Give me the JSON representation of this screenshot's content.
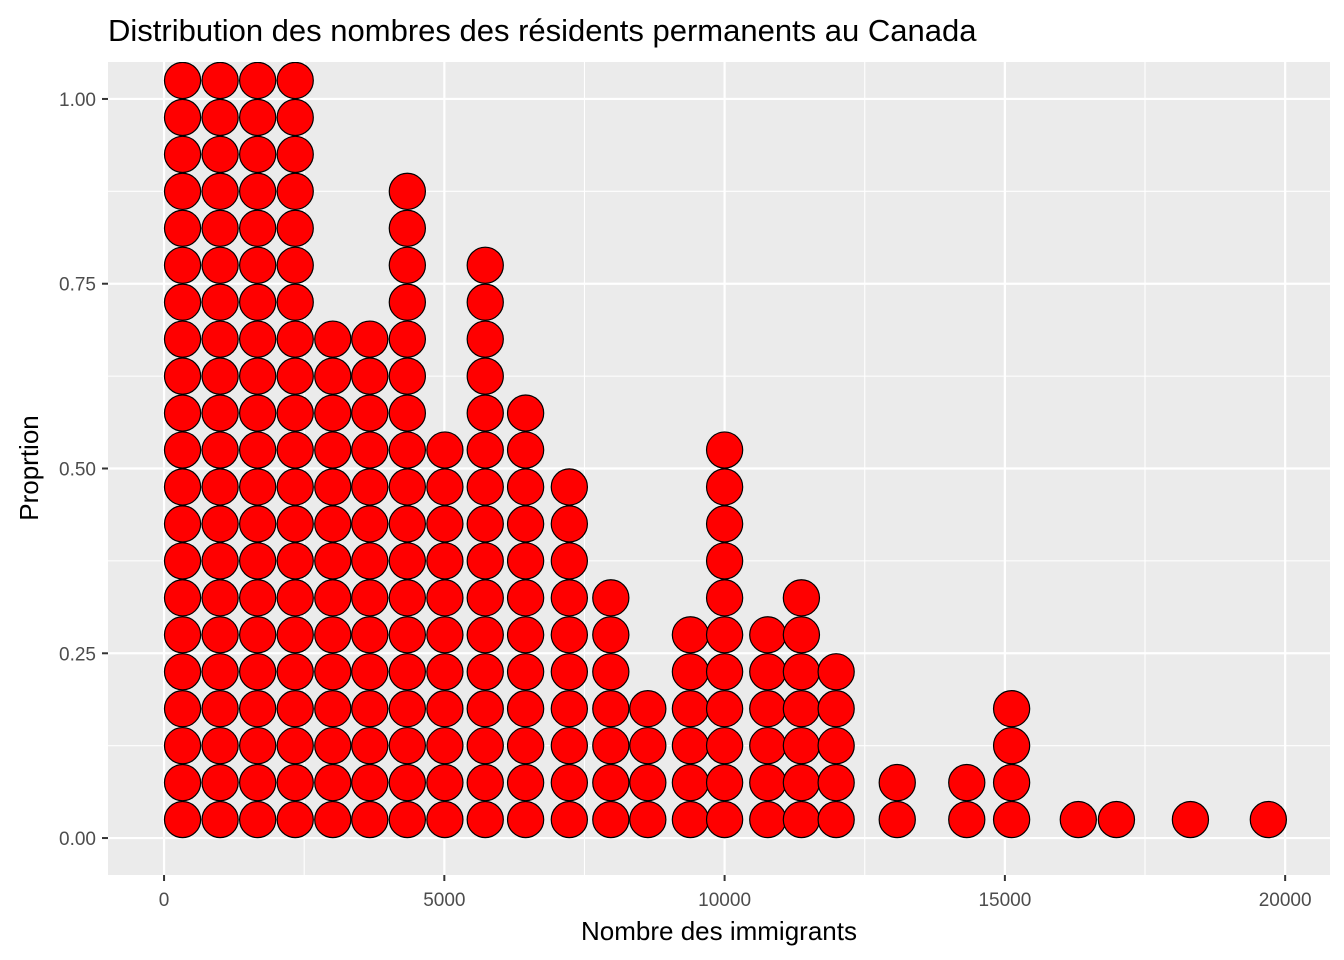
{
  "chart_data": {
    "type": "dotplot",
    "title": "Distribution des nombres des résidents permanents au Canada",
    "xlabel": "Nombre des immigrants",
    "ylabel": "Proprtion",
    "xlim": [
      -1000,
      20800
    ],
    "ylim": [
      -0.05,
      1.05
    ],
    "x_ticks": [
      0,
      5000,
      10000,
      15000,
      20000
    ],
    "x_tick_labels": [
      "0",
      "5000",
      "10000",
      "15000",
      "20000"
    ],
    "y_ticks": [
      0,
      0.25,
      0.5,
      0.75,
      1.0
    ],
    "y_tick_labels": [
      "0.00",
      "0.25",
      "0.50",
      "0.75",
      "1.00"
    ],
    "grid": true,
    "dot_fill": "#ff0000",
    "dot_stroke": "#000000",
    "stack_spacing": 0.05,
    "stacks": [
      {
        "x": 330,
        "count": 22
      },
      {
        "x": 1000,
        "count": 22
      },
      {
        "x": 1670,
        "count": 22
      },
      {
        "x": 2340,
        "count": 22
      },
      {
        "x": 3010,
        "count": 14
      },
      {
        "x": 3670,
        "count": 14
      },
      {
        "x": 4340,
        "count": 18
      },
      {
        "x": 5010,
        "count": 11
      },
      {
        "x": 5730,
        "count": 16
      },
      {
        "x": 6450,
        "count": 12
      },
      {
        "x": 7230,
        "count": 10
      },
      {
        "x": 7970,
        "count": 7
      },
      {
        "x": 8630,
        "count": 4
      },
      {
        "x": 9390,
        "count": 6
      },
      {
        "x": 10000,
        "count": 11
      },
      {
        "x": 10770,
        "count": 6
      },
      {
        "x": 11370,
        "count": 7
      },
      {
        "x": 11990,
        "count": 5
      },
      {
        "x": 13080,
        "count": 2
      },
      {
        "x": 14320,
        "count": 2
      },
      {
        "x": 15120,
        "count": 4
      },
      {
        "x": 16310,
        "count": 1
      },
      {
        "x": 16990,
        "count": 1
      },
      {
        "x": 18310,
        "count": 1
      },
      {
        "x": 19700,
        "count": 1
      }
    ]
  }
}
